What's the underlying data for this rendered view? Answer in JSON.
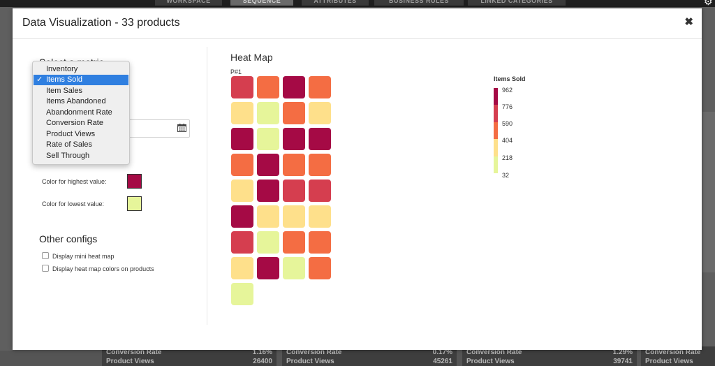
{
  "background": {
    "tabs": [
      "WORKSPACE",
      "SEQUENCE",
      "ATTRIBUTES",
      "BUSINESS RULES",
      "LINKED CATEGORIES"
    ],
    "cards": [
      {
        "label1": "Conversion Rate",
        "value1": "1.16%",
        "label2": "Product Views",
        "value2": "26400"
      },
      {
        "label1": "Conversion Rate",
        "value1": "0.17%",
        "label2": "Product Views",
        "value2": "45261"
      },
      {
        "label1": "Conversion Rate",
        "value1": "1.29%",
        "label2": "Product Views",
        "value2": "39741"
      },
      {
        "label1": "Conversion Rate",
        "value1": "",
        "label2": "Product Views",
        "value2": ""
      }
    ]
  },
  "modal": {
    "title": "Data Visualization - 33 products",
    "close_icon": "close-icon"
  },
  "left": {
    "select_metric_title": "Select a metric",
    "metric_options": [
      "Inventory",
      "Items Sold",
      "Item Sales",
      "Items Abandoned",
      "Abandonment Rate",
      "Conversion Rate",
      "Product Views",
      "Rate of Sales",
      "Sell Through"
    ],
    "selected_metric": "Items Sold",
    "check_glyph": "✓",
    "date_value": "",
    "calendar_icon": "calendar-icon",
    "highest_label": "Color for highest value:",
    "lowest_label": "Color for lowest value:",
    "highest_color": "#a50a45",
    "lowest_color": "#e6f59a",
    "other_configs_title": "Other configs",
    "options": [
      {
        "label": "Display mini heat map",
        "checked": false
      },
      {
        "label": "Display heat map colors on products",
        "checked": false
      }
    ]
  },
  "heatmap": {
    "title": "Heat Map",
    "subtitle": "P#1",
    "colors": {
      "c1": "#a50a45",
      "c2": "#d53e4f",
      "c3": "#f46d43",
      "c4": "#fee08b",
      "c5": "#e6f59a"
    },
    "cells": [
      "c2",
      "c3",
      "c1",
      "c3",
      "c4",
      "c5",
      "c3",
      "c4",
      "c1",
      "c5",
      "c1",
      "c1",
      "c3",
      "c1",
      "c3",
      "c3",
      "c4",
      "c1",
      "c2",
      "c2",
      "c1",
      "c4",
      "c4",
      "c4",
      "c2",
      "c5",
      "c3",
      "c3",
      "c4",
      "c1",
      "c5",
      "c3",
      "c5"
    ],
    "legend": {
      "title": "Items Sold",
      "labels": [
        "962",
        "776",
        "590",
        "404",
        "218",
        "32"
      ]
    }
  }
}
